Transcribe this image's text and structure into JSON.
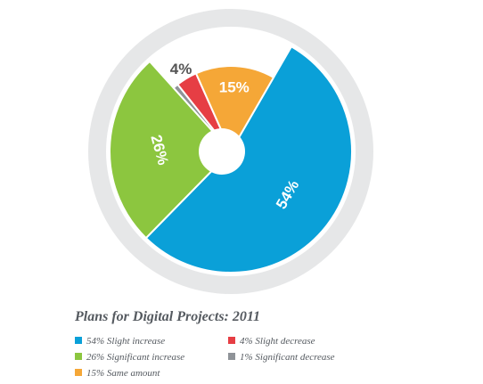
{
  "chart_data": {
    "type": "pie",
    "title": "Plans for Digital Projects: 2011",
    "slices": [
      {
        "label": "Slight increase",
        "value": 54,
        "value_label": "54%",
        "legend": "54% Slight increase",
        "color": "#0aa0d8"
      },
      {
        "label": "Significant increase",
        "value": 26,
        "value_label": "26%",
        "legend": "26% Significant increase",
        "color": "#8cc63f"
      },
      {
        "label": "Significant decrease",
        "value": 1,
        "value_label": "",
        "legend": "1% Significant decrease",
        "color": "#8f9398"
      },
      {
        "label": "Slight decrease",
        "value": 4,
        "value_label": "4%",
        "legend": "4% Slight decrease",
        "color": "#e63e44"
      },
      {
        "label": "Same amount",
        "value": 15,
        "value_label": "15%",
        "legend": "15% Same amount",
        "color": "#f5a737"
      }
    ],
    "legend_placement": "bottom-left",
    "background_ring_color": "#e6e7e8",
    "label_text_color": "#ffffff",
    "outside_label_color": "#555555"
  },
  "legend_order": [
    "54% Slight increase",
    "26% Significant increase",
    "15% Same amount",
    "4% Slight decrease",
    "1% Significant decrease"
  ]
}
